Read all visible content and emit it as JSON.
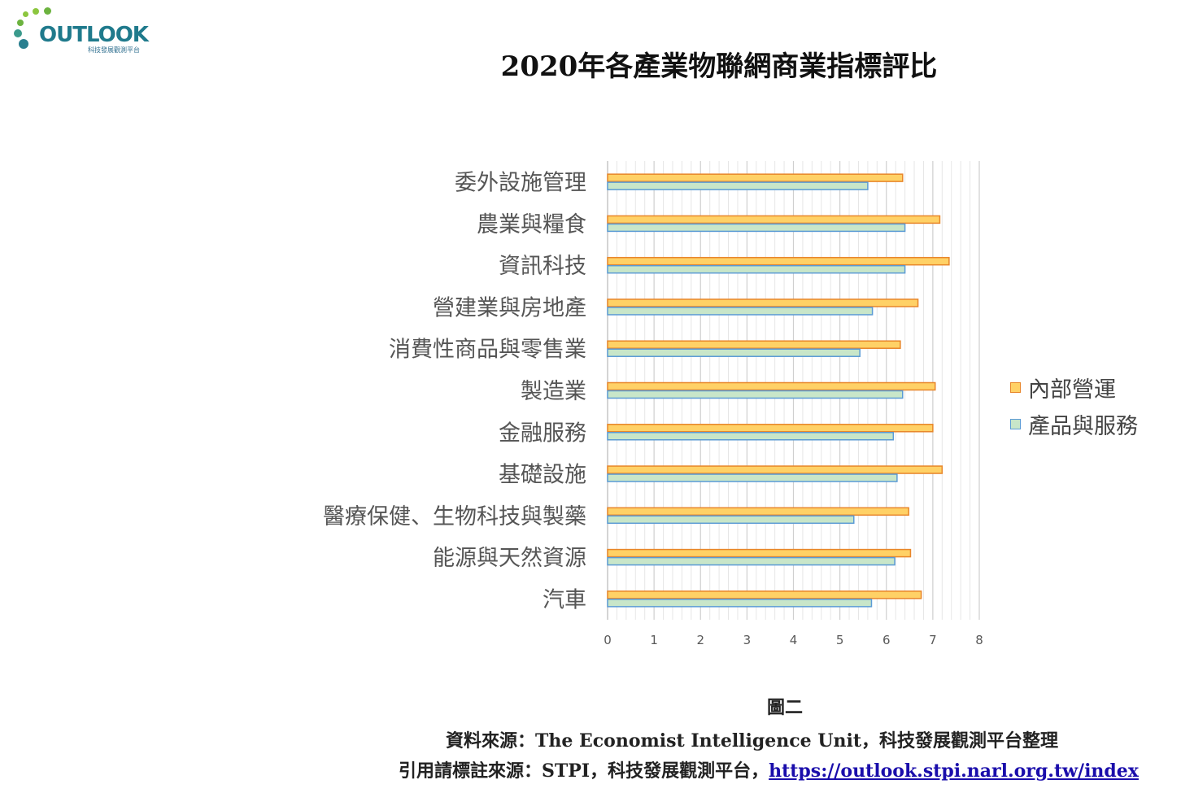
{
  "logo": {
    "text": "OUTLOOK",
    "subtitle": "科技發展觀測平台"
  },
  "caption": "圖二",
  "source_text": "資料來源：The Economist Intelligence Unit，科技發展觀測平台整理",
  "citation": {
    "prefix": "引用請標註來源：STPI，科技發展觀測平台，",
    "link": "https://outlook.stpi.narl.org.tw/index"
  },
  "colors": {
    "internal": "#FFD166",
    "internal_border": "#E8862A",
    "product": "#C8E6C9",
    "product_border": "#5B9BD5"
  },
  "chart_data": {
    "type": "bar",
    "orientation": "horizontal",
    "title": "2020年各產業物聯網商業指標評比",
    "categories": [
      "委外設施管理",
      "農業與糧食",
      "資訊科技",
      "營建業與房地產",
      "消費性商品與零售業",
      "製造業",
      "金融服務",
      "基礎設施",
      "醫療保健、生物科技與製藥",
      "能源與天然資源",
      "汽車"
    ],
    "series": [
      {
        "name": "內部營運",
        "values": [
          6.35,
          7.15,
          7.35,
          6.68,
          6.3,
          7.05,
          7.0,
          7.2,
          6.48,
          6.52,
          6.75
        ]
      },
      {
        "name": "產品與服務",
        "values": [
          5.6,
          6.4,
          6.4,
          5.7,
          5.43,
          6.35,
          6.15,
          6.23,
          5.3,
          6.18,
          5.68
        ]
      }
    ],
    "xlim": [
      0,
      8
    ],
    "xticks": [
      "0",
      "1",
      "2",
      "3",
      "4",
      "5",
      "6",
      "7",
      "8"
    ],
    "grid": true,
    "legend": "right"
  }
}
